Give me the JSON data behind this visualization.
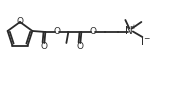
{
  "lw": 1.3,
  "lc": "#2a2a2a",
  "fs": 6.0,
  "fig_w": 1.7,
  "fig_h": 0.85,
  "dpi": 100,
  "xlim": [
    0,
    170
  ],
  "ylim": [
    0,
    85
  ]
}
